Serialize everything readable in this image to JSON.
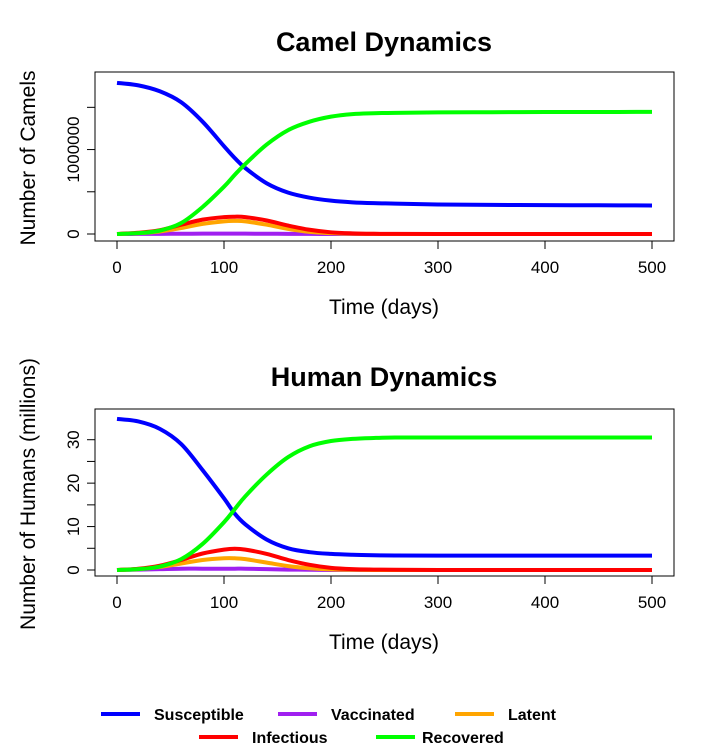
{
  "chart_data": [
    {
      "type": "line",
      "title": "Camel Dynamics",
      "xlabel": "Time (days)",
      "ylabel": "Number of Camels",
      "xlim": [
        0,
        500
      ],
      "ylim": [
        0,
        1800000
      ],
      "x_ticks": [
        0,
        100,
        200,
        300,
        400,
        500
      ],
      "x_tick_labels": [
        "0",
        "100",
        "200",
        "300",
        "400",
        "500"
      ],
      "y_ticks": [
        0,
        500000,
        1000000
      ],
      "y_tick_labels": [
        "0",
        "",
        "1000000"
      ],
      "y_minor_ticks": [
        1500000
      ],
      "grid": false,
      "x": [
        0,
        20,
        40,
        60,
        80,
        100,
        110,
        120,
        140,
        160,
        180,
        200,
        220,
        240,
        260,
        300,
        350,
        400,
        450,
        500
      ],
      "series": [
        {
          "name": "Susceptible",
          "color": "#0000FF",
          "values": [
            1790000,
            1760000,
            1690000,
            1560000,
            1330000,
            1040000,
            900000,
            780000,
            600000,
            490000,
            430000,
            395000,
            375000,
            365000,
            360000,
            350000,
            345000,
            342000,
            340000,
            338000
          ]
        },
        {
          "name": "Vaccinated",
          "color": "#A020F0",
          "values": [
            0,
            1000,
            2000,
            3000,
            4000,
            4000,
            4000,
            4000,
            3000,
            2000,
            1000,
            0,
            0,
            0,
            0,
            0,
            0,
            0,
            0,
            0
          ]
        },
        {
          "name": "Latent",
          "color": "#FFA500",
          "values": [
            0,
            10000,
            30000,
            70000,
            120000,
            150000,
            155000,
            150000,
            110000,
            60000,
            25000,
            10000,
            3000,
            1000,
            0,
            0,
            0,
            0,
            0,
            0
          ]
        },
        {
          "name": "Infectious",
          "color": "#FF0000",
          "values": [
            0,
            15000,
            45000,
            110000,
            170000,
            200000,
            205000,
            200000,
            160000,
            100000,
            50000,
            20000,
            8000,
            3000,
            1000,
            0,
            0,
            0,
            0,
            0
          ]
        },
        {
          "name": "Recovered",
          "color": "#00FF00",
          "values": [
            0,
            10000,
            40000,
            130000,
            320000,
            560000,
            700000,
            830000,
            1060000,
            1230000,
            1330000,
            1390000,
            1420000,
            1430000,
            1435000,
            1440000,
            1442000,
            1444000,
            1445000,
            1446000
          ]
        }
      ]
    },
    {
      "type": "line",
      "title": "Human Dynamics",
      "xlabel": "Time (days)",
      "ylabel": "Number of Humans (millions)",
      "xlim": [
        0,
        500
      ],
      "ylim": [
        0,
        35
      ],
      "x_ticks": [
        0,
        100,
        200,
        300,
        400,
        500
      ],
      "x_tick_labels": [
        "0",
        "100",
        "200",
        "300",
        "400",
        "500"
      ],
      "y_ticks": [
        0,
        10,
        20,
        30
      ],
      "y_tick_labels": [
        "0",
        "10",
        "20",
        "30"
      ],
      "y_minor_ticks": [
        5,
        15,
        25
      ],
      "grid": false,
      "x": [
        0,
        20,
        40,
        60,
        80,
        100,
        110,
        120,
        140,
        160,
        180,
        200,
        220,
        240,
        260,
        300,
        350,
        400,
        450,
        500
      ],
      "series": [
        {
          "name": "Susceptible",
          "color": "#0000FF",
          "values": [
            34.8,
            34.2,
            32.5,
            29.0,
            23.0,
            16.5,
            13.0,
            10.5,
            7.0,
            5.0,
            4.1,
            3.7,
            3.5,
            3.4,
            3.35,
            3.3,
            3.3,
            3.3,
            3.3,
            3.3
          ]
        },
        {
          "name": "Vaccinated",
          "color": "#A020F0",
          "values": [
            0,
            0.1,
            0.2,
            0.3,
            0.3,
            0.3,
            0.3,
            0.3,
            0.2,
            0.1,
            0.05,
            0,
            0,
            0,
            0,
            0,
            0,
            0,
            0,
            0
          ]
        },
        {
          "name": "Latent",
          "color": "#FFA500",
          "values": [
            0,
            0.2,
            0.7,
            1.5,
            2.3,
            2.7,
            2.7,
            2.5,
            1.7,
            0.9,
            0.4,
            0.15,
            0.05,
            0,
            0,
            0,
            0,
            0,
            0,
            0
          ]
        },
        {
          "name": "Infectious",
          "color": "#FF0000",
          "values": [
            0,
            0.3,
            1.0,
            2.3,
            3.8,
            4.7,
            4.9,
            4.7,
            3.7,
            2.3,
            1.2,
            0.5,
            0.2,
            0.1,
            0.05,
            0,
            0,
            0,
            0,
            0
          ]
        },
        {
          "name": "Recovered",
          "color": "#00FF00",
          "values": [
            0,
            0.2,
            0.8,
            2.5,
            6.0,
            11.0,
            14.0,
            17.0,
            22.0,
            26.0,
            28.5,
            29.7,
            30.2,
            30.4,
            30.5,
            30.5,
            30.5,
            30.5,
            30.5,
            30.5
          ]
        }
      ]
    }
  ],
  "legend": {
    "placement": "bottom",
    "items": [
      {
        "label": "Susceptible",
        "color": "#0000FF"
      },
      {
        "label": "Vaccinated",
        "color": "#A020F0"
      },
      {
        "label": "Latent",
        "color": "#FFA500"
      },
      {
        "label": "Infectious",
        "color": "#FF0000"
      },
      {
        "label": "Recovered",
        "color": "#00FF00"
      }
    ]
  }
}
